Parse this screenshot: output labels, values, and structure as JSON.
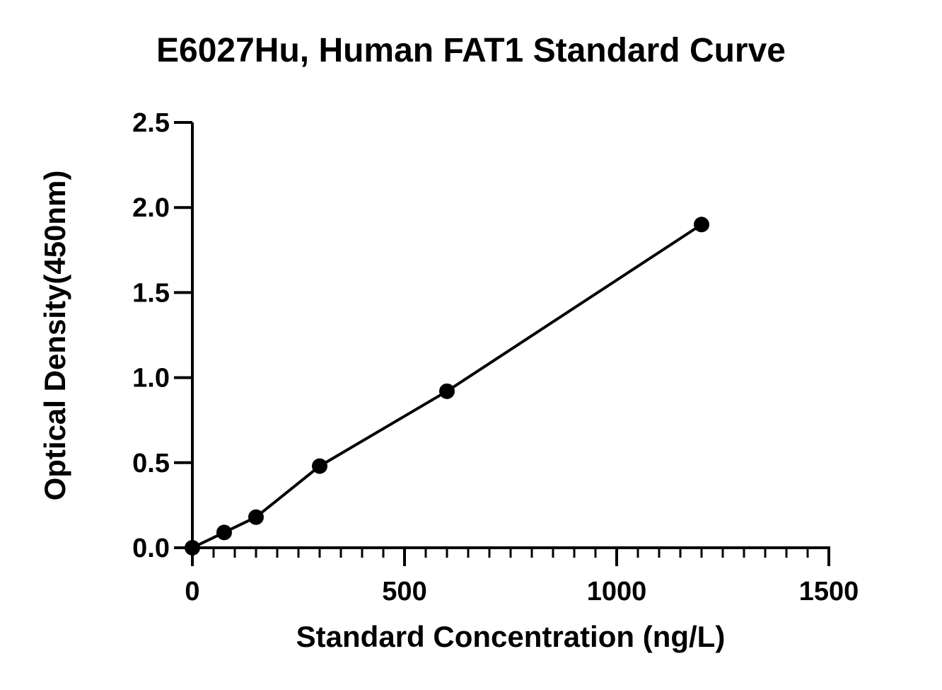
{
  "chart_data": {
    "type": "scatter",
    "title": "E6027Hu, Human FAT1 Standard Curve",
    "xlabel": "Standard Concentration (ng/L)",
    "ylabel": "Optical Density(450nm)",
    "xlim": [
      0,
      1500
    ],
    "ylim": [
      0,
      2.5
    ],
    "x_ticks": [
      0,
      500,
      1000,
      1500
    ],
    "x_tick_labels": [
      "0",
      "500",
      "1000",
      "1500"
    ],
    "x_minor_step": 50,
    "y_ticks": [
      0,
      0.5,
      1.0,
      1.5,
      2.0,
      2.5
    ],
    "y_tick_labels": [
      "0.0",
      "0.5",
      "1.0",
      "1.5",
      "2.0",
      "2.5"
    ],
    "grid": false,
    "series": [
      {
        "x": [
          0,
          75,
          150,
          300,
          600,
          1200
        ],
        "y": [
          0.0,
          0.09,
          0.18,
          0.48,
          0.92,
          1.9
        ],
        "marker": "filled-circle",
        "fit_line": "linear",
        "color": "#000000"
      }
    ]
  }
}
